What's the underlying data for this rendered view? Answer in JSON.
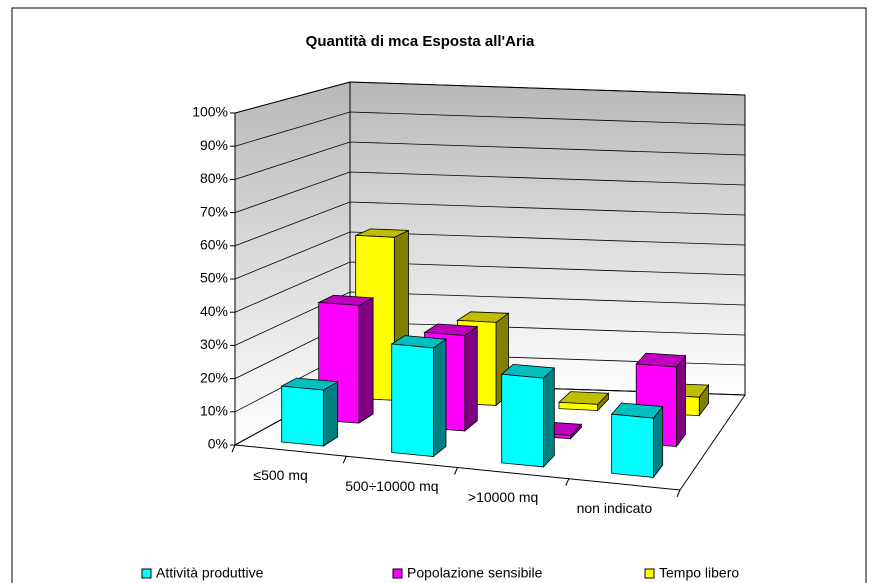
{
  "chart_data": {
    "type": "bar3d",
    "title": "Quantità di mca Esposta all'Aria",
    "categories": [
      "≤500 mq",
      "500÷10000 mq",
      ">10000 mq",
      "non indicato"
    ],
    "series": [
      {
        "name": "Attività produttive",
        "color": "#00FFFF",
        "values": [
          17,
          33,
          27,
          18
        ]
      },
      {
        "name": "Popolazione sensibile",
        "color": "#FF00FF",
        "values": [
          37,
          30,
          1,
          25
        ]
      },
      {
        "name": "Tempo libero",
        "color": "#FFFF00",
        "values": [
          53,
          27,
          2,
          6
        ]
      }
    ],
    "ylim": [
      0,
      100
    ],
    "yticks": [
      {
        "value": 0,
        "label": "0%"
      },
      {
        "value": 10,
        "label": "10%"
      },
      {
        "value": 20,
        "label": "20%"
      },
      {
        "value": 30,
        "label": "30%"
      },
      {
        "value": 40,
        "label": "40%"
      },
      {
        "value": 50,
        "label": "50%"
      },
      {
        "value": 60,
        "label": "60%"
      },
      {
        "value": 70,
        "label": "70%"
      },
      {
        "value": 80,
        "label": "80%"
      },
      {
        "value": 90,
        "label": "90%"
      },
      {
        "value": 100,
        "label": "100%"
      }
    ],
    "grid": true,
    "legend": "bottom"
  }
}
